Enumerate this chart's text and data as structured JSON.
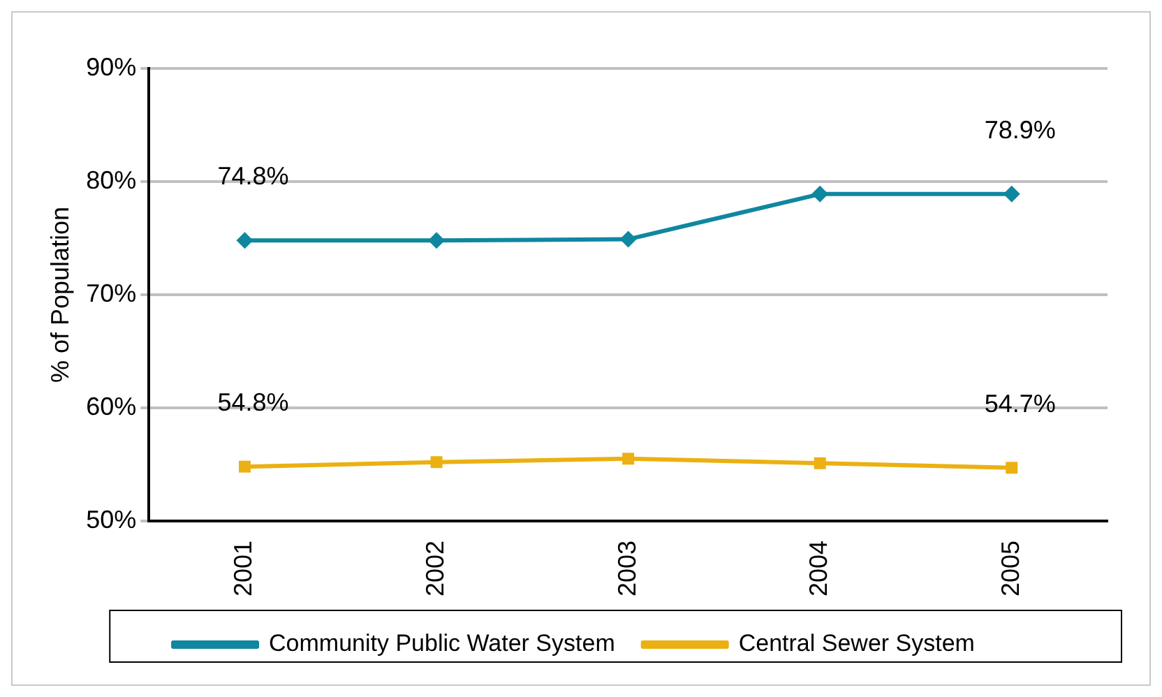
{
  "chart_data": {
    "type": "line",
    "ylabel": "% of Population",
    "categories": [
      "2001",
      "2002",
      "2003",
      "2004",
      "2005"
    ],
    "series": [
      {
        "name": "Community Public Water System",
        "color": "#0f879f",
        "marker": "diamond",
        "values": [
          74.8,
          74.8,
          74.9,
          78.9,
          78.9
        ],
        "value_labels": [
          "74.8%",
          null,
          null,
          null,
          "78.9%"
        ]
      },
      {
        "name": "Central Sewer System",
        "color": "#ebb012",
        "marker": "square",
        "values": [
          54.8,
          55.2,
          55.5,
          55.1,
          54.7
        ],
        "value_labels": [
          "54.8%",
          null,
          null,
          null,
          "54.7%"
        ]
      }
    ],
    "ylim": [
      50,
      90
    ],
    "yticks": [
      {
        "value": 50,
        "label": "50%"
      },
      {
        "value": 60,
        "label": "60%"
      },
      {
        "value": 70,
        "label": "70%"
      },
      {
        "value": 80,
        "label": "80%"
      },
      {
        "value": 90,
        "label": "90%"
      }
    ],
    "grid": "y",
    "legend": "bottom"
  }
}
